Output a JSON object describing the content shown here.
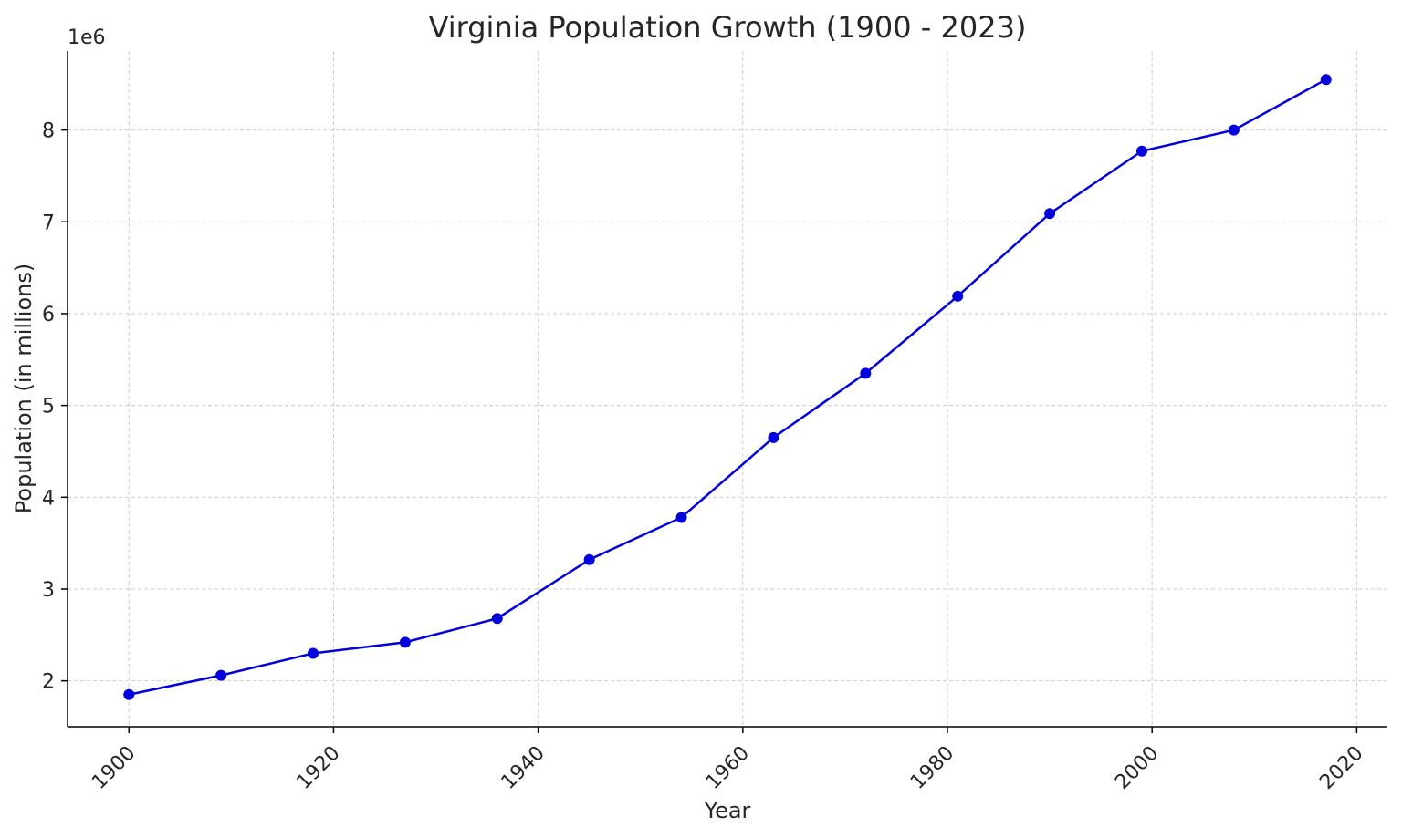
{
  "chart_data": {
    "type": "line",
    "title": "Virginia Population Growth (1900 - 2023)",
    "xlabel": "Year",
    "ylabel": "Population (in millions)",
    "y_offset_label": "1e6",
    "x": [
      1900,
      1909,
      1918,
      1927,
      1936,
      1945,
      1954,
      1963,
      1972,
      1981,
      1990,
      1999,
      2008,
      2017
    ],
    "series": [
      {
        "values": [
          1850000,
          2060000,
          2300000,
          2420000,
          2680000,
          3320000,
          3780000,
          4650000,
          5350000,
          6190000,
          7090000,
          7770000,
          8000000,
          8550000
        ],
        "color": "#0000dd",
        "marker": "circle"
      }
    ],
    "xticks": [
      1900,
      1920,
      1940,
      1960,
      1980,
      2000,
      2020
    ],
    "xtick_labels": [
      "1900",
      "1920",
      "1940",
      "1960",
      "1980",
      "2000",
      "2020"
    ],
    "yticks": [
      2000000,
      3000000,
      4000000,
      5000000,
      6000000,
      7000000,
      8000000
    ],
    "ytick_labels": [
      "2",
      "3",
      "4",
      "5",
      "6",
      "7",
      "8"
    ],
    "xlim": [
      1894,
      2023
    ],
    "ylim": [
      1500000,
      8860000
    ],
    "grid": true,
    "grid_style": "dashed"
  }
}
